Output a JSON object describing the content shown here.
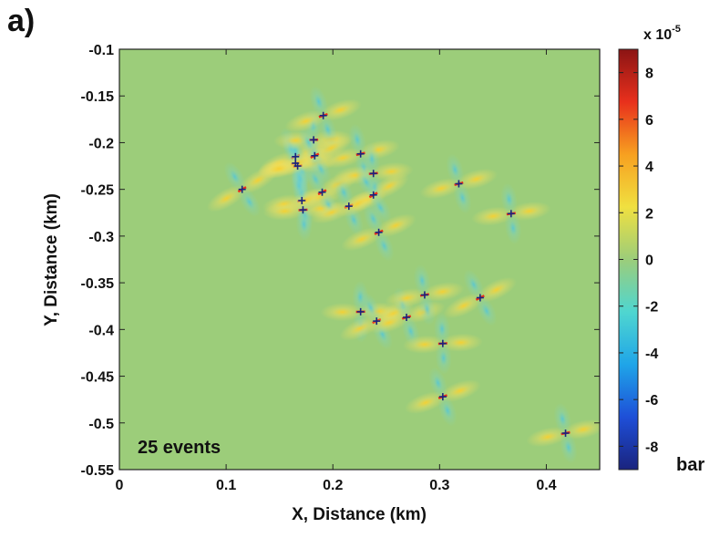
{
  "panel_label": "a)",
  "colors": {
    "background_field": "#9ccd7a",
    "event_marker": "#1a237e",
    "colormap": [
      "#1a237e",
      "#1e4fd8",
      "#1fa5e8",
      "#4fd6d0",
      "#9ccd7a",
      "#f0e040",
      "#f7a020",
      "#e8301c",
      "#8b1414"
    ]
  },
  "chart_data": {
    "type": "scatter",
    "title": "",
    "xlabel": "X, Distance (km)",
    "ylabel": "Y, Distance (km)",
    "xlim": [
      0,
      0.45
    ],
    "ylim": [
      -0.55,
      -0.1
    ],
    "xticks": [
      0,
      0.1,
      0.2,
      0.3,
      0.4
    ],
    "xtick_labels": [
      "0",
      "0.1",
      "0.2",
      "0.3",
      "0.4"
    ],
    "yticks": [
      -0.1,
      -0.15,
      -0.2,
      -0.25,
      -0.3,
      -0.35,
      -0.4,
      -0.45,
      -0.5,
      -0.55
    ],
    "ytick_labels": [
      "-0.1",
      "-0.15",
      "-0.2",
      "-0.25",
      "-0.3",
      "-0.35",
      "-0.4",
      "-0.45",
      "-0.5",
      "-0.55"
    ],
    "grid": false,
    "annotation": "25 events",
    "events": [
      {
        "x": 0.115,
        "y": -0.25
      },
      {
        "x": 0.165,
        "y": -0.215
      },
      {
        "x": 0.165,
        "y": -0.222
      },
      {
        "x": 0.167,
        "y": -0.225
      },
      {
        "x": 0.182,
        "y": -0.197
      },
      {
        "x": 0.183,
        "y": -0.214
      },
      {
        "x": 0.191,
        "y": -0.171
      },
      {
        "x": 0.171,
        "y": -0.262
      },
      {
        "x": 0.172,
        "y": -0.272
      },
      {
        "x": 0.19,
        "y": -0.253
      },
      {
        "x": 0.215,
        "y": -0.268
      },
      {
        "x": 0.226,
        "y": -0.212
      },
      {
        "x": 0.238,
        "y": -0.233
      },
      {
        "x": 0.238,
        "y": -0.256
      },
      {
        "x": 0.243,
        "y": -0.296
      },
      {
        "x": 0.318,
        "y": -0.244
      },
      {
        "x": 0.367,
        "y": -0.276
      },
      {
        "x": 0.226,
        "y": -0.381
      },
      {
        "x": 0.241,
        "y": -0.391
      },
      {
        "x": 0.269,
        "y": -0.387
      },
      {
        "x": 0.286,
        "y": -0.363
      },
      {
        "x": 0.303,
        "y": -0.415
      },
      {
        "x": 0.338,
        "y": -0.366
      },
      {
        "x": 0.303,
        "y": -0.472
      },
      {
        "x": 0.418,
        "y": -0.511
      }
    ],
    "colorbar": {
      "range": [
        -9,
        9
      ],
      "ticks": [
        8,
        6,
        4,
        2,
        0,
        -2,
        -4,
        -6,
        -8
      ],
      "tick_labels": [
        "8",
        "6",
        "4",
        "2",
        "0",
        "-2",
        "-4",
        "-6",
        "-8"
      ],
      "multiplier_base": "x 10",
      "multiplier_exponent": "-5",
      "unit": "bar"
    }
  }
}
